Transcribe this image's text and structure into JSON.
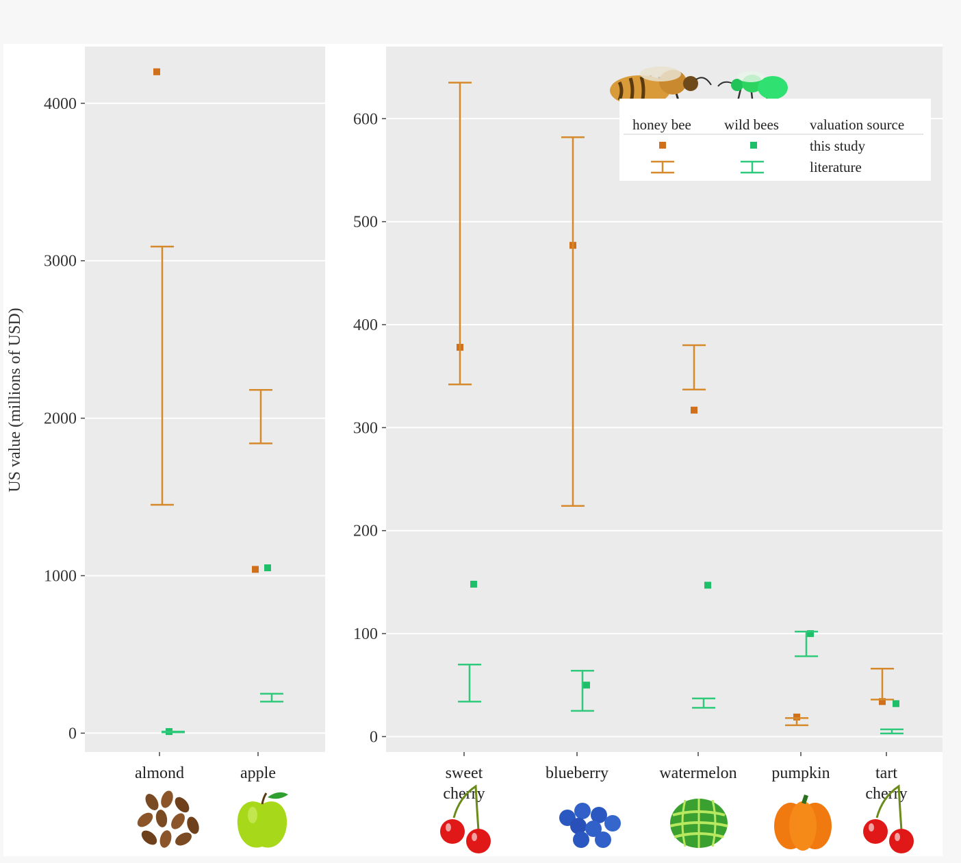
{
  "chart_data": [
    {
      "type": "scatter",
      "panel": "left",
      "ylabel": "US value (millions of USD)",
      "ylim": [
        -120,
        4360
      ],
      "yticks": [
        0,
        1000,
        2000,
        3000,
        4000
      ],
      "ytick_labels": [
        "0",
        "1000",
        "2000",
        "3000",
        "4000"
      ],
      "categories": [
        "almond",
        "apple"
      ],
      "category_labels": [
        [
          "almond"
        ],
        [
          "apple"
        ]
      ],
      "series": [
        {
          "name": "honey bee — this study",
          "color": "#d0701a",
          "points": [
            4200,
            1040
          ]
        },
        {
          "name": "wild bees — this study",
          "color": "#1fbf6a",
          "points": [
            10,
            1050
          ]
        },
        {
          "name": "honey bee — literature",
          "color": "#d6892b",
          "ranges": [
            [
              1450,
              3090
            ],
            [
              1840,
              2180
            ]
          ]
        },
        {
          "name": "wild bees — literature",
          "color": "#2ec97a",
          "ranges": [
            [
              5,
              10
            ],
            [
              200,
              250
            ]
          ]
        }
      ]
    },
    {
      "type": "scatter",
      "panel": "right",
      "ylim": [
        -15,
        670
      ],
      "yticks": [
        0,
        100,
        200,
        300,
        400,
        500,
        600
      ],
      "ytick_labels": [
        "0",
        "100",
        "200",
        "300",
        "400",
        "500",
        "600"
      ],
      "categories": [
        "sweet cherry",
        "blueberry",
        "watermelon",
        "pumpkin",
        "tart cherry"
      ],
      "category_labels": [
        [
          "sweet",
          "cherry"
        ],
        [
          "blueberry"
        ],
        [
          "watermelon"
        ],
        [
          "pumpkin"
        ],
        [
          "tart",
          "cherry"
        ]
      ],
      "series": [
        {
          "name": "honey bee — this study",
          "color": "#d0701a",
          "points": [
            378,
            477,
            317,
            19,
            34
          ]
        },
        {
          "name": "wild bees — this study",
          "color": "#1fbf6a",
          "points": [
            148,
            50,
            147,
            100,
            32
          ]
        },
        {
          "name": "honey bee — literature",
          "color": "#d6892b",
          "ranges": [
            [
              342,
              635
            ],
            [
              224,
              582
            ],
            [
              337,
              380
            ],
            [
              11,
              18
            ],
            [
              36,
              66
            ]
          ]
        },
        {
          "name": "wild bees — literature",
          "color": "#2ec97a",
          "ranges": [
            [
              34,
              70
            ],
            [
              25,
              64
            ],
            [
              28,
              37
            ],
            [
              78,
              102
            ],
            [
              3,
              7
            ]
          ]
        }
      ]
    }
  ],
  "legend": {
    "headers": [
      "honey bee",
      "wild bees",
      "valuation source"
    ],
    "rows": [
      "this study",
      "literature"
    ]
  },
  "colors": {
    "honey_bee": "#d0701a",
    "wild_bees": "#1fbf6a",
    "panel_bg": "#ebebeb",
    "grid": "#ffffff"
  },
  "icons": [
    "almond-icon",
    "apple-icon",
    "cherry-icon",
    "blueberry-icon",
    "watermelon-icon",
    "pumpkin-icon",
    "cherry-icon",
    "honey-bee-icon",
    "wild-bee-icon"
  ]
}
